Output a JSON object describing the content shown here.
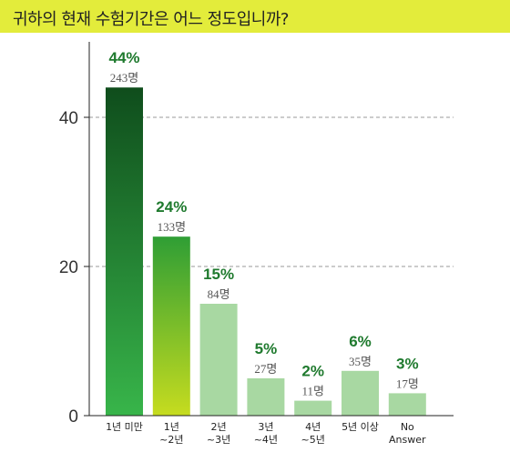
{
  "title": "귀하의 현재 수험기간은 어느 정도입니까?",
  "colors": {
    "title_bg": "#e3ec3b",
    "bar_dark_top": "#0f4d1c",
    "bar_dark_bottom": "#38b54a",
    "bar_mid_top": "#2f9e35",
    "bar_mid_bottom": "#c6dc1f",
    "bar_light": "#a8d8a2",
    "percent_text": "#1f7a2e"
  },
  "chart_data": {
    "type": "bar",
    "categories": [
      [
        "1년 미만"
      ],
      [
        "1년",
        "~2년"
      ],
      [
        "2년",
        "~3년"
      ],
      [
        "3년",
        "~4년"
      ],
      [
        "4년",
        "~5년"
      ],
      [
        "5년 이상"
      ],
      [
        "No",
        "Answer"
      ]
    ],
    "values": [
      44,
      24,
      15,
      5,
      2,
      6,
      3
    ],
    "percent_labels": [
      "44%",
      "24%",
      "15%",
      "5%",
      "2%",
      "6%",
      "3%"
    ],
    "count_labels": [
      "243명",
      "133명",
      "84명",
      "27명",
      "11명",
      "35명",
      "17명"
    ],
    "bar_styles": [
      "dark",
      "mid",
      "light",
      "light",
      "light",
      "light",
      "light"
    ],
    "yticks": [
      "0",
      "20",
      "40"
    ],
    "ytick_values": [
      0,
      20,
      40
    ],
    "ylim": [
      0,
      50
    ],
    "gridlines": [
      20,
      40
    ],
    "legend": "none"
  }
}
